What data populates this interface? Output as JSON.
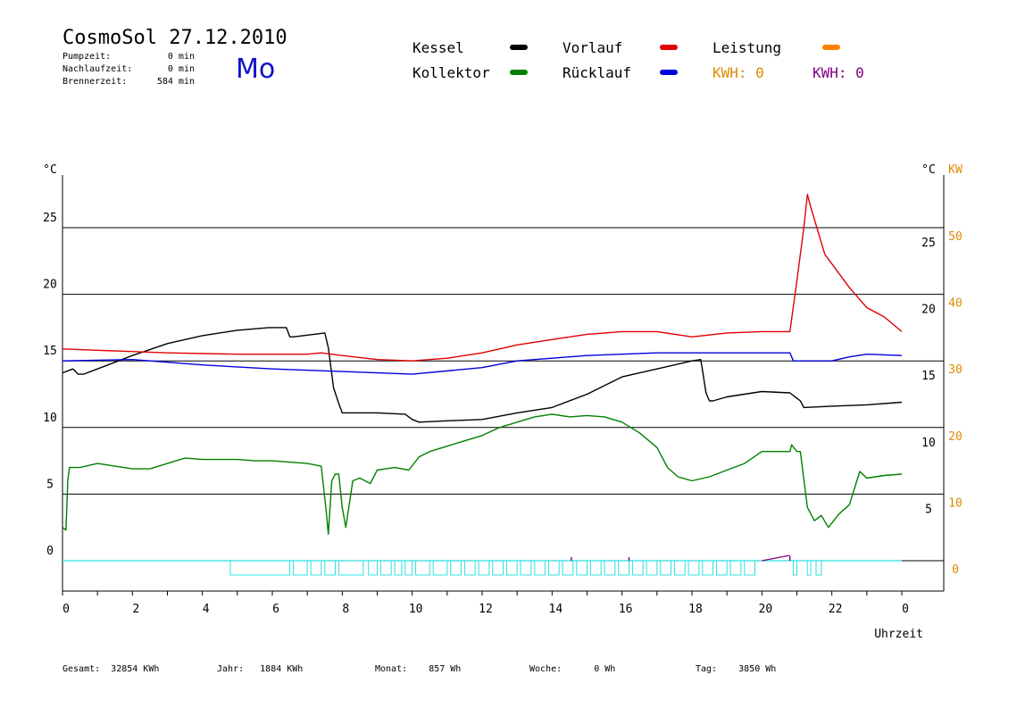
{
  "header": {
    "title": "CosmoSol 27.12.2010",
    "day": "Mo",
    "pumpzeit_label": "Pumpzeit:",
    "pumpzeit_value": "0 min",
    "nachlaufzeit_label": "Nachlaufzeit:",
    "nachlaufzeit_value": "0 min",
    "brennerzeit_label": "Brennerzeit:",
    "brennerzeit_value": "584 min"
  },
  "legend": {
    "kessel": "Kessel",
    "kollektor": "Kollektor",
    "vorlauf": "Vorlauf",
    "ruecklauf": "Rücklauf",
    "leistung": "Leistung",
    "kwh_orange": "KWH: 0",
    "kwh_purple": "KWH: 0"
  },
  "colors": {
    "kessel": "#000000",
    "kollektor": "#008000",
    "vorlauf": "#e00000",
    "ruecklauf": "#0000dd",
    "leistung": "#ff8000",
    "kwh_purple": "#800080",
    "pump": "#30e0e0",
    "kw_axis": "#e08a00"
  },
  "footer": {
    "gesamt": "Gesamt:  32854 KWh",
    "jahr": "Jahr:   1884 KWh",
    "monat": "Monat:    857 Wh",
    "woche": "Woche:      0 Wh",
    "tag": "Tag:    3850 Wh"
  },
  "chart_data": {
    "type": "line",
    "xlabel": "Uhrzeit",
    "left_unit": "°C",
    "right_unit": "°C",
    "right2_unit": "KW",
    "xlim": [
      0,
      24
    ],
    "ylim": [
      -2.3,
      29
    ],
    "x_ticks": [
      "0",
      "2",
      "4",
      "6",
      "8",
      "10",
      "12",
      "14",
      "16",
      "18",
      "20",
      "22",
      "0"
    ],
    "y_left_ticks": [
      "0",
      "5",
      "10",
      "15",
      "20",
      "25"
    ],
    "y_right_ticks": [
      "5",
      "10",
      "15",
      "20",
      "25"
    ],
    "y_kw_ticks": [
      "0",
      "10",
      "20",
      "30",
      "40",
      "50"
    ],
    "grid": "horizontal",
    "series": [
      {
        "name": "Kessel",
        "key": "kessel",
        "x": [
          0,
          0.3,
          0.45,
          0.6,
          1,
          2,
          3,
          4,
          5,
          5.9,
          6.4,
          6.5,
          6.6,
          7.5,
          7.6,
          7.7,
          7.75,
          7.9,
          8.0,
          9,
          9.8,
          10.0,
          10.2,
          11,
          12,
          13,
          14,
          15,
          16,
          17,
          18,
          18.25,
          18.3,
          18.4,
          18.5,
          18.6,
          19,
          20,
          20.8,
          21.1,
          21.2,
          22,
          23,
          24
        ],
        "y": [
          14.1,
          14.4,
          14,
          14,
          14.4,
          15.4,
          16.3,
          16.9,
          17.3,
          17.5,
          17.5,
          16.8,
          16.8,
          17.1,
          16,
          14,
          13,
          11.8,
          11.1,
          11.1,
          11,
          10.6,
          10.4,
          10.5,
          10.6,
          11.1,
          11.5,
          12.5,
          13.8,
          14.4,
          15,
          15.1,
          14.3,
          12.6,
          12.0,
          12.0,
          12.3,
          12.7,
          12.6,
          12.0,
          11.5,
          11.6,
          11.7,
          11.9
        ]
      },
      {
        "name": "Vorlauf",
        "key": "vorlauf",
        "x": [
          0,
          1,
          3,
          5,
          7,
          7.4,
          8,
          9,
          10,
          11,
          12,
          13,
          14,
          15,
          16,
          17,
          18,
          19,
          20,
          20.8,
          21.0,
          21.2,
          21.3,
          21.4,
          21.8,
          22.5,
          23,
          23.5,
          24
        ],
        "y": [
          15.9,
          15.8,
          15.6,
          15.5,
          15.5,
          15.6,
          15.4,
          15.1,
          15,
          15.2,
          15.6,
          16.2,
          16.6,
          17,
          17.2,
          17.2,
          16.8,
          17.1,
          17.2,
          17.2,
          21,
          25,
          27.5,
          26.5,
          23,
          20.5,
          19,
          18.3,
          17.2
        ]
      },
      {
        "name": "Rücklauf",
        "key": "ruecklauf",
        "x": [
          0,
          2,
          4,
          6,
          8,
          10,
          12,
          13,
          14,
          15,
          16,
          17,
          18,
          19,
          20,
          20.8,
          20.9,
          21,
          22,
          22.5,
          23,
          24
        ],
        "y": [
          15,
          15.1,
          14.7,
          14.4,
          14.2,
          14,
          14.5,
          15,
          15.2,
          15.4,
          15.5,
          15.6,
          15.6,
          15.6,
          15.6,
          15.6,
          15.0,
          15.0,
          15.0,
          15.3,
          15.5,
          15.4
        ]
      },
      {
        "name": "Kollektor",
        "key": "kollektor",
        "x": [
          0,
          0.1,
          0.15,
          0.2,
          0.5,
          1,
          1.5,
          2,
          2.5,
          3,
          3.5,
          4,
          4.5,
          5,
          5.5,
          6,
          6.5,
          7,
          7.4,
          7.55,
          7.6,
          7.7,
          7.8,
          7.9,
          8.0,
          8.1,
          8.3,
          8.5,
          8.8,
          9,
          9.5,
          9.9,
          10.2,
          10.5,
          11,
          11.5,
          12,
          12.5,
          13,
          13.5,
          14,
          14.5,
          15,
          15.5,
          16,
          16.5,
          17,
          17.3,
          17.6,
          18,
          18.5,
          19,
          19.5,
          20,
          20.5,
          20.8,
          20.85,
          21.0,
          21.1,
          21.3,
          21.5,
          21.7,
          21.9,
          22.2,
          22.5,
          22.8,
          23,
          23.5,
          24
        ],
        "y": [
          2.5,
          2.3,
          6,
          7,
          7,
          7.3,
          7.1,
          6.9,
          6.9,
          7.3,
          7.7,
          7.6,
          7.6,
          7.6,
          7.5,
          7.5,
          7.4,
          7.3,
          7.1,
          3.5,
          2,
          6,
          6.5,
          6.5,
          4,
          2.5,
          6,
          6.2,
          5.8,
          6.8,
          7,
          6.8,
          7.8,
          8.2,
          8.6,
          9,
          9.4,
          10,
          10.4,
          10.8,
          11,
          10.8,
          10.9,
          10.8,
          10.4,
          9.6,
          8.5,
          7,
          6.3,
          6,
          6.3,
          6.8,
          7.3,
          8.2,
          8.2,
          8.2,
          8.7,
          8.2,
          8.2,
          4,
          3,
          3.4,
          2.5,
          3.5,
          4.2,
          6.7,
          6.2,
          6.4,
          6.5
        ]
      },
      {
        "name": "Leistung",
        "key": "leistung",
        "x": [
          0,
          24
        ],
        "y": [
          0,
          0
        ]
      }
    ],
    "pump_blocks": [
      [
        4.8,
        6.5
      ],
      [
        6.6,
        7.0
      ],
      [
        7.1,
        7.4
      ],
      [
        7.5,
        7.8
      ],
      [
        7.9,
        8.6
      ],
      [
        8.75,
        9.0
      ],
      [
        9.1,
        9.4
      ],
      [
        9.5,
        9.7
      ],
      [
        9.8,
        10.0
      ],
      [
        10.1,
        10.5
      ],
      [
        10.6,
        11.0
      ],
      [
        11.1,
        11.4
      ],
      [
        11.5,
        11.8
      ],
      [
        11.9,
        12.2
      ],
      [
        12.3,
        12.6
      ],
      [
        12.7,
        13.0
      ],
      [
        13.1,
        13.4
      ],
      [
        13.5,
        13.8
      ],
      [
        13.9,
        14.2
      ],
      [
        14.3,
        14.6
      ],
      [
        14.7,
        15.0
      ],
      [
        15.1,
        15.4
      ],
      [
        15.5,
        15.8
      ],
      [
        15.9,
        16.2
      ],
      [
        16.3,
        16.6
      ],
      [
        16.7,
        17.0
      ],
      [
        17.1,
        17.4
      ],
      [
        17.5,
        17.8
      ],
      [
        17.9,
        18.2
      ],
      [
        18.3,
        18.6
      ],
      [
        18.7,
        19.0
      ],
      [
        19.1,
        19.4
      ],
      [
        19.5,
        19.8
      ],
      [
        20.9,
        21.0
      ],
      [
        21.3,
        21.4
      ],
      [
        21.55,
        21.7
      ]
    ]
  }
}
